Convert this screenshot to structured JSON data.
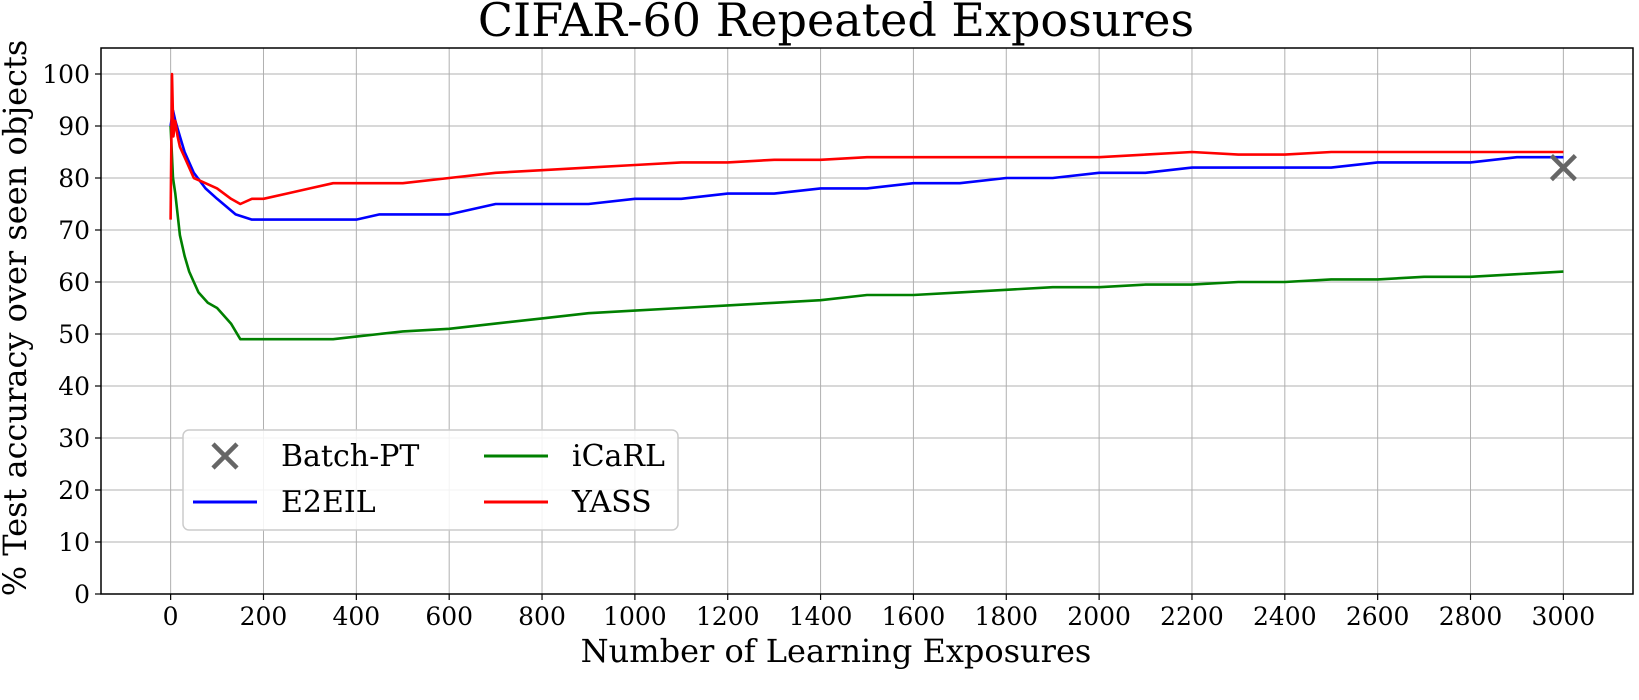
{
  "chart_data": {
    "type": "line",
    "title": "CIFAR-60 Repeated Exposures",
    "xlabel": "Number of Learning Exposures",
    "ylabel": "% Test accuracy over seen objects",
    "xlim": [
      -150,
      3150
    ],
    "ylim": [
      0,
      105
    ],
    "xticks": [
      0,
      200,
      400,
      600,
      800,
      1000,
      1200,
      1400,
      1600,
      1800,
      2000,
      2200,
      2400,
      2600,
      2800,
      3000
    ],
    "yticks": [
      0,
      10,
      20,
      30,
      40,
      50,
      60,
      70,
      80,
      90,
      100
    ],
    "grid": true,
    "legend_position": "lower-left",
    "legend": [
      "Batch-PT",
      "iCaRL",
      "E2EIL",
      "YASS"
    ],
    "series": [
      {
        "name": "E2EIL",
        "color": "#0000ff",
        "x": [
          0,
          5,
          10,
          20,
          30,
          50,
          75,
          100,
          140,
          175,
          200,
          250,
          300,
          350,
          400,
          450,
          500,
          600,
          700,
          800,
          900,
          1000,
          1100,
          1200,
          1300,
          1400,
          1500,
          1600,
          1700,
          1800,
          1900,
          2000,
          2100,
          2200,
          2300,
          2400,
          2500,
          2600,
          2700,
          2800,
          2900,
          3000
        ],
        "y": [
          90,
          93,
          91,
          88,
          85,
          81,
          78,
          76,
          73,
          72,
          72,
          72,
          72,
          72,
          72,
          73,
          73,
          73,
          75,
          75,
          75,
          76,
          76,
          77,
          77,
          78,
          78,
          79,
          79,
          80,
          80,
          81,
          81,
          82,
          82,
          82,
          82,
          83,
          83,
          83,
          84,
          84
        ]
      },
      {
        "name": "iCaRL",
        "color": "#008000",
        "x": [
          0,
          5,
          10,
          15,
          20,
          30,
          40,
          50,
          60,
          80,
          100,
          130,
          150,
          175,
          200,
          250,
          300,
          350,
          400,
          450,
          500,
          600,
          700,
          800,
          900,
          1000,
          1100,
          1200,
          1300,
          1400,
          1500,
          1600,
          1700,
          1800,
          1900,
          2000,
          2100,
          2200,
          2300,
          2400,
          2500,
          2600,
          2700,
          2800,
          2900,
          3000
        ],
        "y": [
          90,
          80,
          77,
          73,
          69,
          65,
          62,
          60,
          58,
          56,
          55,
          52,
          49,
          49,
          49,
          49,
          49,
          49,
          49.5,
          50,
          50.5,
          51,
          52,
          53,
          54,
          54.5,
          55,
          55.5,
          56,
          56.5,
          57.5,
          57.5,
          58,
          58.5,
          59,
          59,
          59.5,
          59.5,
          60,
          60,
          60.5,
          60.5,
          61,
          61,
          61.5,
          62
        ]
      },
      {
        "name": "YASS",
        "color": "#ff0000",
        "x": [
          0,
          3,
          6,
          10,
          15,
          20,
          30,
          50,
          75,
          100,
          130,
          150,
          175,
          200,
          250,
          300,
          350,
          400,
          450,
          500,
          600,
          700,
          800,
          900,
          1000,
          1100,
          1200,
          1300,
          1400,
          1500,
          1600,
          1700,
          1800,
          1900,
          2000,
          2100,
          2200,
          2300,
          2400,
          2500,
          2600,
          2700,
          2800,
          2900,
          3000
        ],
        "y": [
          72,
          100,
          88,
          91,
          88,
          86,
          84,
          80,
          79,
          78,
          76,
          75,
          76,
          76,
          77,
          78,
          79,
          79,
          79,
          79,
          80,
          81,
          81.5,
          82,
          82.5,
          83,
          83,
          83.5,
          83.5,
          84,
          84,
          84,
          84,
          84,
          84,
          84.5,
          85,
          84.5,
          84.5,
          85,
          85,
          85,
          85,
          85,
          85
        ]
      }
    ],
    "markers": [
      {
        "name": "Batch-PT",
        "marker": "x",
        "color": "#666666",
        "x": 3000,
        "y": 82
      }
    ]
  }
}
